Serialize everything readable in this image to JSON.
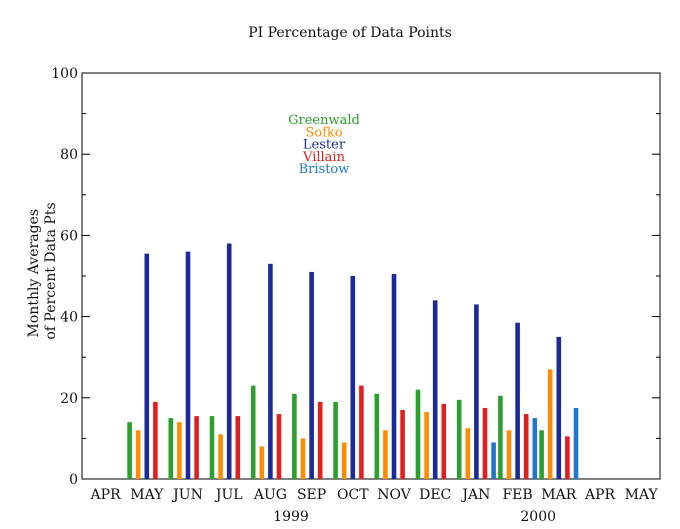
{
  "chart_data": {
    "type": "bar",
    "title": "PI Percentage of Data Points",
    "ylabel_lines": [
      "Monthly Averages",
      "of Percent Data Pts"
    ],
    "ylim": [
      0,
      100
    ],
    "yticks": [
      0,
      20,
      40,
      60,
      80,
      100
    ],
    "categories": [
      "APR",
      "MAY",
      "JUN",
      "JUL",
      "AUG",
      "SEP",
      "OCT",
      "NOV",
      "DEC",
      "JAN",
      "FEB",
      "MAR",
      "APR",
      "MAY"
    ],
    "year_labels": [
      {
        "label": "1999",
        "category_index": 4.5
      },
      {
        "label": "2000",
        "category_index": 10.5
      }
    ],
    "legend_position": "upper-left-inside",
    "series": [
      {
        "name": "Greenwald",
        "color": "#2ca02c",
        "values": [
          null,
          14,
          15,
          15.5,
          23,
          21,
          19,
          21,
          22,
          19.5,
          20.5,
          12,
          null,
          null
        ]
      },
      {
        "name": "Sofko",
        "color": "#ff8c00",
        "values": [
          null,
          12,
          14,
          11,
          8,
          10,
          9,
          12,
          16.5,
          12.5,
          12,
          27,
          null,
          null
        ]
      },
      {
        "name": "Lester",
        "color": "#1a2a9c",
        "values": [
          null,
          55.5,
          56,
          58,
          53,
          51,
          50,
          50.5,
          44,
          43,
          38.5,
          35,
          null,
          null
        ]
      },
      {
        "name": "Villain",
        "color": "#e02020",
        "values": [
          null,
          19,
          15.5,
          15.5,
          16,
          19,
          23,
          17,
          18.5,
          17.5,
          16,
          10.5,
          null,
          null
        ]
      },
      {
        "name": "Bristow",
        "color": "#1f77d4",
        "values": [
          null,
          null,
          null,
          null,
          null,
          null,
          null,
          null,
          null,
          9,
          15,
          17.5,
          null,
          null
        ]
      }
    ]
  }
}
